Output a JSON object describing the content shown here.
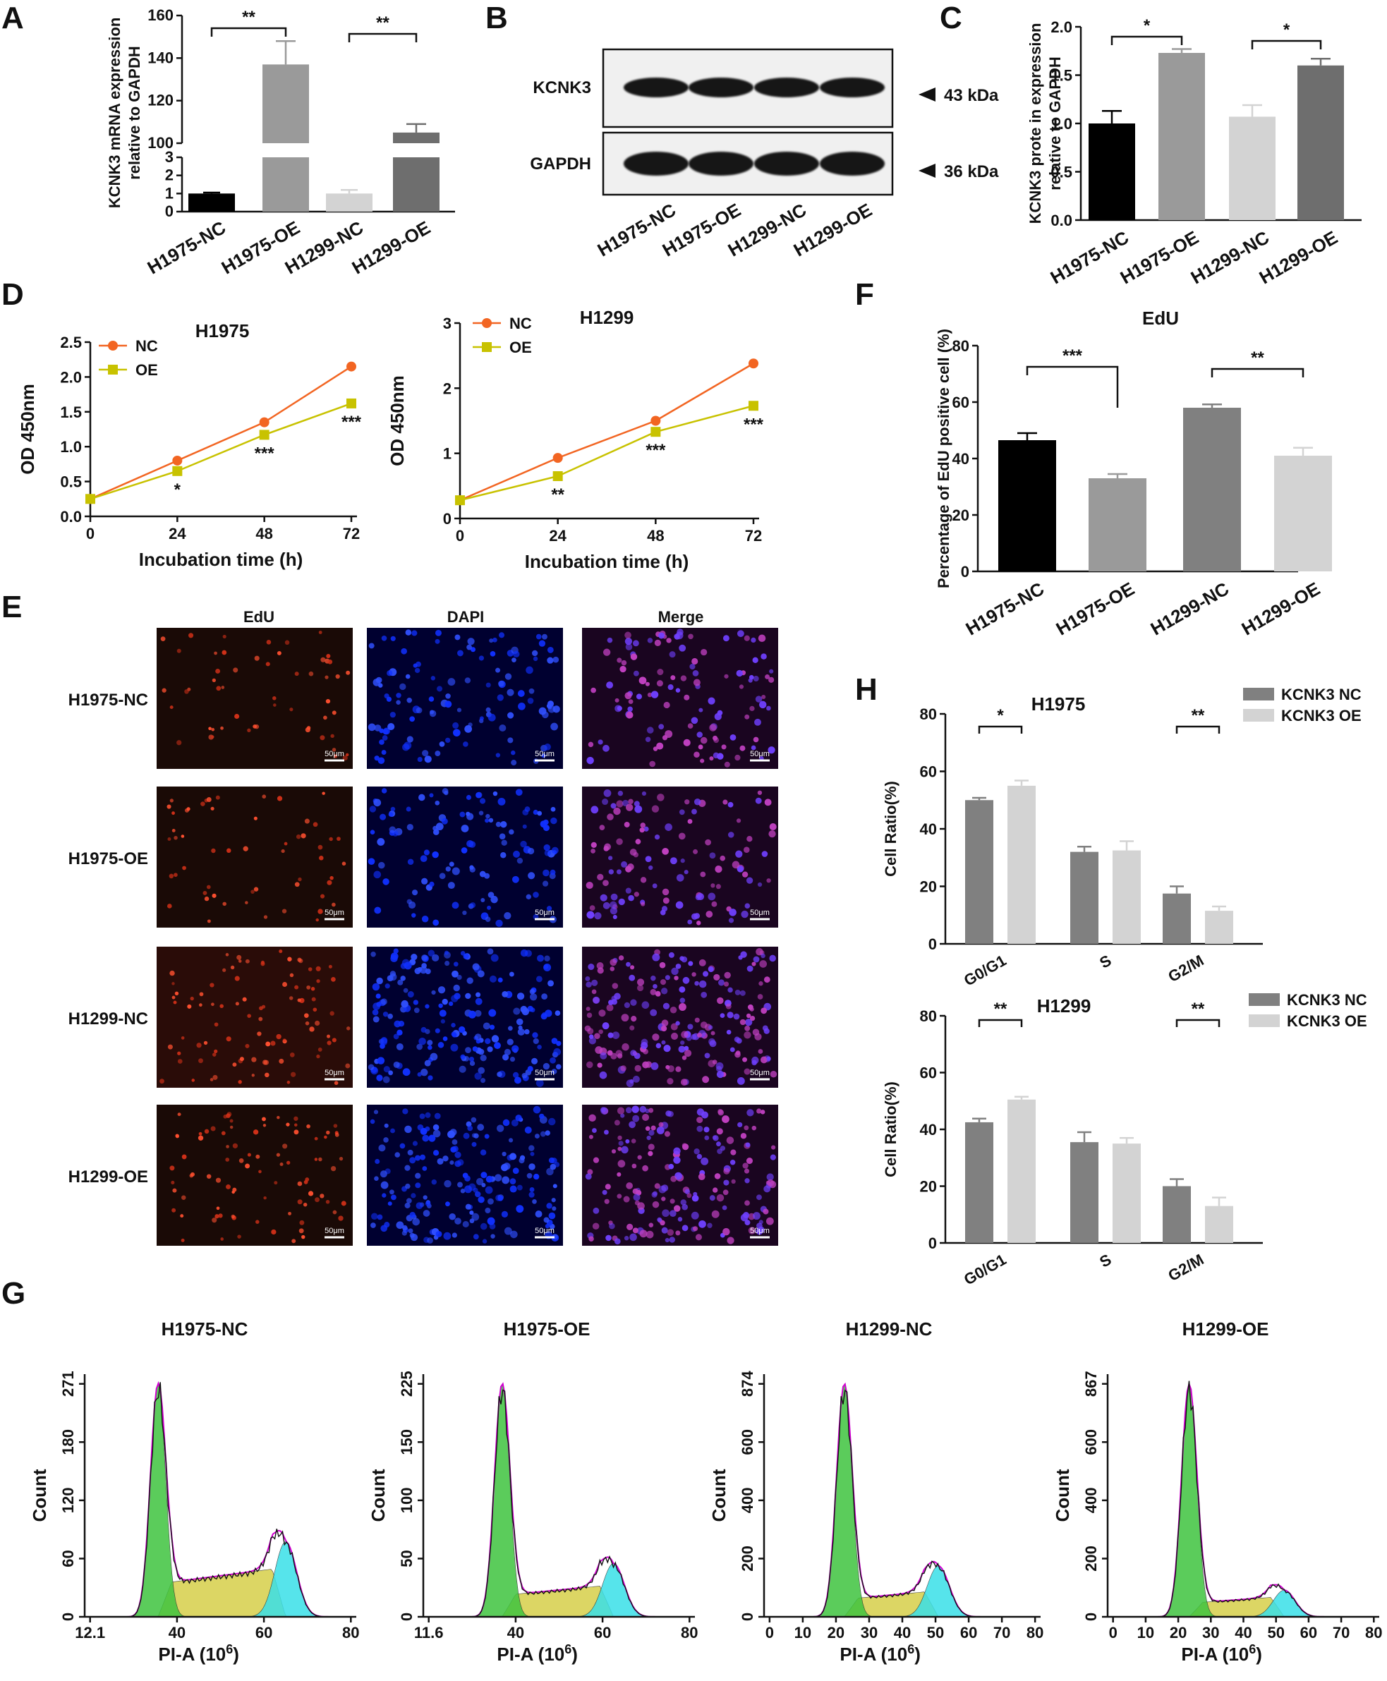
{
  "panel_labels": [
    "A",
    "B",
    "C",
    "D",
    "E",
    "F",
    "G",
    "H"
  ],
  "colors": {
    "black": "#000000",
    "gray": "#9a9a9a",
    "lightgray": "#d3d3d3",
    "darkgray": "#6e6e6e",
    "midgray": "#808080",
    "nc_orange": "#f26522",
    "oe_olive": "#c8c200",
    "green": "#3fc43f",
    "yellow": "#d6d04a",
    "cyan": "#39e0e8",
    "magenta": "#d000d0"
  },
  "chart_data": [
    {
      "id": "A",
      "type": "bar",
      "categories": [
        "H1975-NC",
        "H1975-OE",
        "H1299-NC",
        "H1299-OE"
      ],
      "values": [
        1.0,
        137,
        1.0,
        105
      ],
      "errors": [
        0.05,
        11,
        0.2,
        4
      ],
      "ylabel": "KCNK3 mRNA expression relative to GAPDH",
      "broken_axis": {
        "lower": [
          0,
          3
        ],
        "upper": [
          100,
          160
        ]
      },
      "yticks_lower": [
        "0",
        "1",
        "2",
        "3"
      ],
      "yticks_upper": [
        "100",
        "120",
        "140",
        "160"
      ],
      "significance": [
        {
          "pair": [
            0,
            1
          ],
          "label": "**"
        },
        {
          "pair": [
            2,
            3
          ],
          "label": "**"
        }
      ]
    },
    {
      "id": "B",
      "type": "western_blot",
      "rows": [
        {
          "name": "KCNK3",
          "size": "43 kDa"
        },
        {
          "name": "GAPDH",
          "size": "36 kDa"
        }
      ],
      "lanes": [
        "H1975-NC",
        "H1975-OE",
        "H1299-NC",
        "H1299-OE"
      ]
    },
    {
      "id": "C",
      "type": "bar",
      "categories": [
        "H1975-NC",
        "H1975-OE",
        "H1299-NC",
        "H1299-OE"
      ],
      "values": [
        1.0,
        1.73,
        1.07,
        1.6
      ],
      "errors": [
        0.13,
        0.04,
        0.12,
        0.07
      ],
      "ylabel": "KCNK3 prote in expression relative to GAPDH",
      "ylim": [
        0,
        2.0
      ],
      "yticks": [
        "0.0",
        "0.5",
        "1.0",
        "1.5",
        "2.0"
      ],
      "significance": [
        {
          "pair": [
            0,
            1
          ],
          "label": "*"
        },
        {
          "pair": [
            2,
            3
          ],
          "label": "*"
        }
      ]
    },
    {
      "id": "D1",
      "type": "line",
      "title": "H1975",
      "x": [
        0,
        24,
        48,
        72
      ],
      "series": [
        {
          "name": "NC",
          "values": [
            0.25,
            0.8,
            1.35,
            2.15
          ]
        },
        {
          "name": "OE",
          "values": [
            0.25,
            0.65,
            1.17,
            1.62
          ]
        }
      ],
      "sig": [
        "",
        "*",
        "***",
        "***"
      ],
      "xlabel": "Incubation time (h)",
      "ylabel": "OD 450nm",
      "ylim": [
        0,
        2.5
      ],
      "yticks": [
        "0.0",
        "0.5",
        "1.0",
        "1.5",
        "2.0",
        "2.5"
      ],
      "xticks": [
        "0",
        "24",
        "48",
        "72"
      ]
    },
    {
      "id": "D2",
      "type": "line",
      "title": "H1299",
      "x": [
        0,
        24,
        48,
        72
      ],
      "series": [
        {
          "name": "NC",
          "values": [
            0.28,
            0.93,
            1.5,
            2.38
          ]
        },
        {
          "name": "OE",
          "values": [
            0.28,
            0.65,
            1.33,
            1.73
          ]
        }
      ],
      "sig": [
        "",
        "**",
        "***",
        "***"
      ],
      "xlabel": "Incubation time (h)",
      "ylabel": "OD 450nm",
      "ylim": [
        0,
        3
      ],
      "yticks": [
        "0",
        "1",
        "2",
        "3"
      ],
      "xticks": [
        "0",
        "24",
        "48",
        "72"
      ]
    },
    {
      "id": "F",
      "type": "bar",
      "title": "EdU",
      "categories": [
        "H1975-NC",
        "H1975-OE",
        "H1299-NC",
        "H1299-OE"
      ],
      "values": [
        46.5,
        33,
        58,
        41
      ],
      "errors": [
        2.5,
        1.5,
        1.2,
        2.8
      ],
      "ylabel": "Percentage of EdU positive cell (%)",
      "ylim": [
        0,
        80
      ],
      "yticks": [
        "0",
        "20",
        "40",
        "60",
        "80"
      ],
      "significance": [
        {
          "pair": [
            0,
            1
          ],
          "label": "***"
        },
        {
          "pair": [
            2,
            3
          ],
          "label": "**"
        }
      ]
    },
    {
      "id": "H1",
      "type": "bar",
      "title": "H1975",
      "categories": [
        "G0/G1",
        "S",
        "G2/M"
      ],
      "series": [
        {
          "name": "KCNK3 NC",
          "values": [
            50,
            32,
            17.5
          ],
          "errors": [
            0.8,
            1.8,
            2.5
          ]
        },
        {
          "name": "KCNK3 OE",
          "values": [
            55,
            32.5,
            11.5
          ],
          "errors": [
            1.8,
            3.2,
            1.5
          ]
        }
      ],
      "ylabel": "Cell Ratio(%)",
      "ylim": [
        0,
        80
      ],
      "yticks": [
        "0",
        "20",
        "40",
        "60",
        "80"
      ],
      "significance": [
        {
          "group": 0,
          "label": "*"
        },
        {
          "group": 2,
          "label": "**"
        }
      ]
    },
    {
      "id": "H2",
      "type": "bar",
      "title": "H1299",
      "categories": [
        "G0/G1",
        "S",
        "G2/M"
      ],
      "series": [
        {
          "name": "KCNK3 NC",
          "values": [
            42.5,
            35.5,
            20
          ],
          "errors": [
            1.3,
            3.5,
            2.5
          ]
        },
        {
          "name": "KCNK3 OE",
          "values": [
            50.5,
            35,
            13
          ],
          "errors": [
            1,
            2,
            3
          ]
        }
      ],
      "ylabel": "Cell Ratio(%)",
      "ylim": [
        0,
        80
      ],
      "yticks": [
        "0",
        "20",
        "40",
        "60",
        "80"
      ],
      "significance": [
        {
          "group": 0,
          "label": "**"
        },
        {
          "group": 2,
          "label": "**"
        }
      ]
    }
  ],
  "edu_images": {
    "columns": [
      "EdU",
      "DAPI",
      "Merge"
    ],
    "rows": [
      "H1975-NC",
      "H1975-OE",
      "H1299-NC",
      "H1299-OE"
    ],
    "scale_bar": "50μm"
  },
  "flow": [
    {
      "title": "H1975-NC",
      "xticks": [
        "12.1",
        "40",
        "60",
        "80"
      ],
      "yticks": [
        "0",
        "60",
        "120",
        "180",
        "271"
      ],
      "xlabel": "PI-A",
      "xunit": "(10",
      "xexp": "6",
      "xclose": ")",
      "ylabel": "Count"
    },
    {
      "title": "H1975-OE",
      "xticks": [
        "11.6",
        "40",
        "60",
        "80"
      ],
      "yticks": [
        "0",
        "50",
        "100",
        "150",
        "225"
      ],
      "xlabel": "PI-A",
      "xunit": "(10",
      "xexp": "6",
      "xclose": ")",
      "ylabel": "Count"
    },
    {
      "title": "H1299-NC",
      "xticks": [
        "0",
        "10",
        "20",
        "30",
        "40",
        "50",
        "60",
        "70",
        "80"
      ],
      "yticks": [
        "0",
        "200",
        "400",
        "600",
        "874"
      ],
      "xlabel": "PI-A",
      "xunit": "(10",
      "xexp": "6",
      "xclose": ")",
      "ylabel": "Count"
    },
    {
      "title": "H1299-OE",
      "xticks": [
        "0",
        "10",
        "20",
        "30",
        "40",
        "50",
        "60",
        "70",
        "80"
      ],
      "yticks": [
        "0",
        "200",
        "400",
        "600",
        "867"
      ],
      "xlabel": "PI-A",
      "xunit": "(10",
      "xexp": "6",
      "xclose": ")",
      "ylabel": "Count"
    }
  ]
}
